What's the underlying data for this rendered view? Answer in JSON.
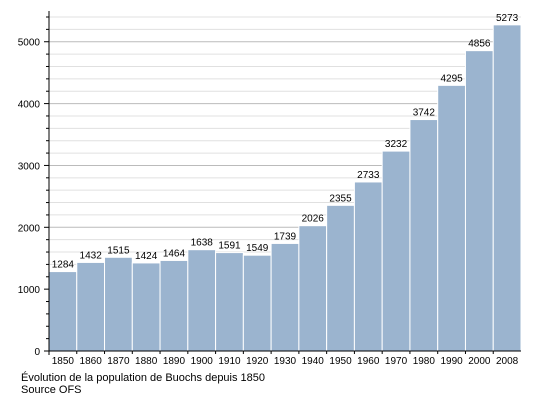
{
  "chart_data": {
    "type": "bar",
    "categories": [
      "1850",
      "1860",
      "1870",
      "1880",
      "1890",
      "1900",
      "1910",
      "1920",
      "1930",
      "1940",
      "1950",
      "1960",
      "1970",
      "1980",
      "1990",
      "2000",
      "2008"
    ],
    "values": [
      1284,
      1432,
      1515,
      1424,
      1464,
      1638,
      1591,
      1549,
      1739,
      2026,
      2355,
      2733,
      3232,
      3742,
      4295,
      4856,
      5273
    ],
    "ylim": [
      0,
      5400
    ],
    "yticks": [
      0,
      1000,
      2000,
      3000,
      4000,
      5000
    ],
    "grid": true,
    "bar_color": "#9bb4cf",
    "bar_stroke": "#ffffff",
    "grid_major_color": "#bbbbbb",
    "grid_minor_color": "#e0e0e0",
    "title": "",
    "xlabel": "",
    "ylabel": ""
  },
  "caption": {
    "line1": "Évolution de la population de Buochs depuis 1850",
    "line2": "Source OFS"
  }
}
